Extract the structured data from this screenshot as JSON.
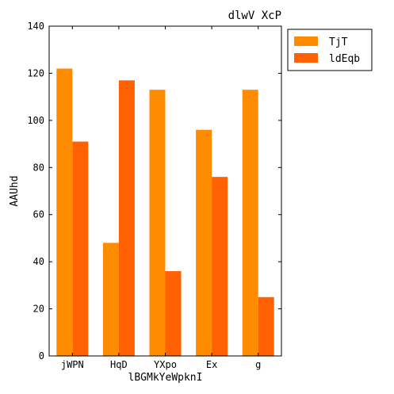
{
  "chart_data": {
    "type": "bar",
    "title": "dlwV XcP",
    "xlabel": "lBGMkYeWpknI",
    "ylabel": "AAUhd",
    "categories": [
      "jWPN",
      "HqD",
      "YXpo",
      "Ex",
      "g"
    ],
    "series": [
      {
        "name": "TjT",
        "values": [
          122,
          48,
          113,
          96,
          113
        ],
        "color": "#ff8c00"
      },
      {
        "name": "ldEqb",
        "values": [
          91,
          117,
          36,
          76,
          25
        ],
        "color": "#ff6103"
      }
    ],
    "ylim": [
      0,
      140
    ],
    "yticks": [
      0,
      20,
      40,
      60,
      80,
      100,
      120,
      140
    ],
    "grid": false,
    "legend_position": "upper-right-outside"
  }
}
